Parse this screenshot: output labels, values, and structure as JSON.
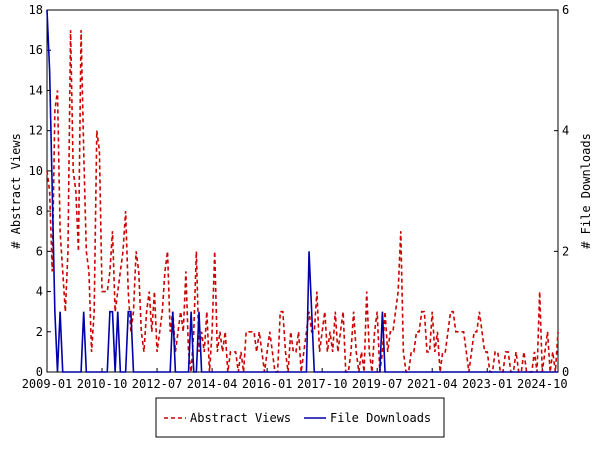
{
  "chart_data": {
    "type": "line",
    "y_label": "# Abstract Views",
    "y2_label": "# File Downloads",
    "categories": [
      "2009-01",
      null,
      null,
      null,
      null,
      null,
      null,
      null,
      null,
      null,
      null,
      null,
      null,
      null,
      null,
      null,
      null,
      null,
      null,
      null,
      null,
      "2010-10",
      null,
      null,
      null,
      null,
      null,
      null,
      null,
      null,
      null,
      null,
      null,
      null,
      null,
      null,
      null,
      null,
      null,
      null,
      null,
      null,
      "2012-07",
      null,
      null,
      null,
      null,
      null,
      null,
      null,
      null,
      null,
      null,
      null,
      null,
      null,
      null,
      null,
      null,
      null,
      null,
      null,
      null,
      "2014-04",
      null,
      null,
      null,
      null,
      null,
      null,
      null,
      null,
      null,
      null,
      null,
      null,
      null,
      null,
      null,
      null,
      null,
      null,
      null,
      null,
      "2016-01",
      null,
      null,
      null,
      null,
      null,
      null,
      null,
      null,
      null,
      null,
      null,
      null,
      null,
      null,
      null,
      null,
      null,
      null,
      null,
      null,
      "2017-10",
      null,
      null,
      null,
      null,
      null,
      null,
      null,
      null,
      null,
      null,
      null,
      null,
      null,
      null,
      null,
      null,
      null,
      null,
      null,
      null,
      "2019-07",
      null,
      null,
      null,
      null,
      null,
      null,
      null,
      null,
      null,
      null,
      null,
      null,
      null,
      null,
      null,
      null,
      null,
      null,
      null,
      null,
      "2021-04",
      null,
      null,
      null,
      null,
      null,
      null,
      null,
      null,
      null,
      null,
      null,
      null,
      null,
      null,
      null,
      null,
      null,
      null,
      null,
      null,
      "2023-01",
      null,
      null,
      null,
      null,
      null,
      null,
      null,
      null,
      null,
      null,
      null,
      null,
      null,
      null,
      null,
      null,
      null,
      null,
      null,
      null,
      "2024-10",
      null,
      null,
      null,
      null,
      null,
      null
    ],
    "series": [
      {
        "name": "Abstract Views",
        "color": "#cc0000",
        "dash": true,
        "values": [
          10,
          9,
          5,
          13,
          14,
          7,
          5,
          3,
          6,
          17,
          10,
          9,
          6,
          17,
          11,
          6,
          5,
          1,
          3,
          12,
          11,
          4,
          4,
          4,
          5,
          7,
          3,
          4,
          5,
          6,
          8,
          4,
          2,
          3,
          6,
          5,
          2,
          1,
          3,
          4,
          2,
          4,
          1,
          2,
          3,
          5,
          6,
          2,
          3,
          1,
          2,
          3,
          2,
          5,
          1,
          0,
          2,
          6,
          1,
          2,
          1,
          3,
          0,
          2,
          6,
          1,
          2,
          1,
          2,
          0,
          1,
          1,
          1,
          0,
          1,
          0,
          2,
          2,
          2,
          2,
          1,
          2,
          1,
          0,
          1,
          2,
          1,
          0,
          0,
          3,
          3,
          1,
          0,
          2,
          1,
          1,
          2,
          0,
          1,
          2,
          3,
          2,
          2,
          4,
          1,
          2,
          3,
          1,
          2,
          1,
          3,
          1,
          2,
          3,
          0,
          0,
          1,
          3,
          1,
          0,
          1,
          0,
          4,
          1,
          0,
          2,
          3,
          0,
          1,
          3,
          1,
          2,
          2,
          3,
          4,
          7,
          1,
          0,
          0,
          1,
          1,
          2,
          2,
          3,
          3,
          1,
          1,
          3,
          1,
          2,
          0,
          1,
          1,
          2,
          3,
          3,
          2,
          2,
          2,
          2,
          1,
          0,
          1,
          2,
          2,
          3,
          2,
          1,
          1,
          0,
          0,
          1,
          1,
          0,
          0,
          1,
          1,
          0,
          0,
          1,
          0,
          0,
          1,
          0,
          0,
          0,
          1,
          0,
          4,
          0,
          1,
          2,
          0,
          1,
          0,
          2
        ]
      },
      {
        "name": "File Downloads",
        "color": "#0000aa",
        "dash": false,
        "axis": "y2",
        "values": [
          6,
          5,
          3,
          1,
          0,
          1,
          0,
          0,
          0,
          0,
          0,
          0,
          0,
          0,
          1,
          0,
          0,
          0,
          0,
          0,
          0,
          0,
          0,
          0,
          1,
          1,
          0,
          1,
          0,
          0,
          0,
          1,
          1,
          0,
          0,
          0,
          0,
          0,
          0,
          0,
          0,
          0,
          0,
          0,
          0,
          0,
          0,
          0,
          1,
          0,
          0,
          0,
          0,
          0,
          0,
          1,
          0,
          0,
          1,
          0,
          0,
          0,
          0,
          0,
          0,
          0,
          0,
          0,
          0,
          0,
          0,
          0,
          0,
          0,
          0,
          0,
          0,
          0,
          0,
          0,
          0,
          0,
          0,
          0,
          0,
          0,
          0,
          0,
          0,
          0,
          0,
          0,
          0,
          0,
          0,
          0,
          0,
          0,
          0,
          0,
          2,
          1,
          0,
          0,
          0,
          0,
          0,
          0,
          0,
          0,
          0,
          0,
          0,
          0,
          0,
          0,
          0,
          0,
          0,
          0,
          0,
          0,
          0,
          0,
          0,
          0,
          0,
          0,
          1,
          0,
          0,
          0,
          0,
          0,
          0,
          0,
          0,
          0,
          0,
          0,
          0,
          0,
          0,
          0,
          0,
          0,
          0,
          0,
          0,
          0,
          0,
          0,
          0,
          0,
          0,
          0,
          0,
          0,
          0,
          0,
          0,
          0,
          0,
          0,
          0,
          0,
          0,
          0,
          0,
          0,
          0,
          0,
          0,
          0,
          0,
          0,
          0,
          0,
          0,
          0,
          0,
          0,
          0,
          0,
          0,
          0,
          0,
          0,
          0,
          0,
          0,
          0,
          0,
          0,
          0,
          0
        ]
      }
    ],
    "ylim": [
      0,
      18
    ],
    "yticks": [
      0,
      2,
      4,
      6,
      8,
      10,
      12,
      14,
      16,
      18
    ],
    "y2lim": [
      0,
      6
    ],
    "y2ticks": [
      0,
      2,
      4,
      6
    ]
  }
}
